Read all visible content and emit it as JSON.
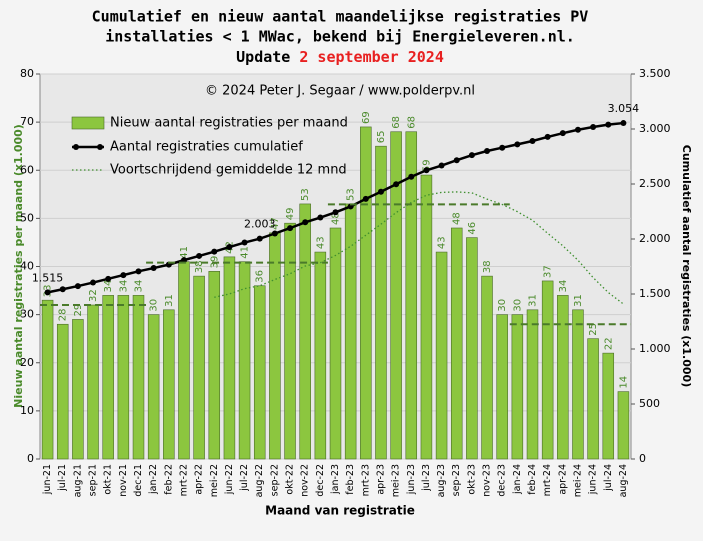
{
  "chart_data": {
    "type": "bar_line",
    "title_lines": [
      "Cumulatief  en nieuw  aantal maandelijkse  registraties  PV",
      "installaties  < 1 MWac, bekend bij Energieleveren.nl."
    ],
    "update_prefix": "Update",
    "update_date": "2 september 2024",
    "annotation": "© 2024  Peter J. Segaar / www.polderpv.nl",
    "x_label": "Maand van registratie",
    "y_label": "Nieuw aantal registraties per maand (x1.000)",
    "y2_label": "Cumulatief aantal registraties (x1.000)",
    "categories": [
      "jun-21",
      "jul-21",
      "aug-21",
      "sep-21",
      "okt-21",
      "nov-21",
      "dec-21",
      "jan-22",
      "feb-22",
      "mrt-22",
      "apr-22",
      "mei-22",
      "jun-22",
      "jul-22",
      "aug-22",
      "sep-22",
      "okt-22",
      "nov-22",
      "dec-22",
      "jan-23",
      "feb-23",
      "mrt-23",
      "apr-23",
      "mei-23",
      "jun-23",
      "jul-23",
      "aug-23",
      "sep-23",
      "okt-23",
      "nov-23",
      "dec-23",
      "jan-24",
      "feb-24",
      "mrt-24",
      "apr-24",
      "mei-24",
      "jun-24",
      "jul-24",
      "aug-24"
    ],
    "series": [
      {
        "name": "Nieuw aantal registraties per maand",
        "type": "bar",
        "color": "#8cc63f",
        "values": [
          33,
          28,
          29,
          32,
          34,
          34,
          34,
          30,
          31,
          41,
          38,
          39,
          42,
          41,
          36,
          47,
          49,
          53,
          43,
          48,
          53,
          69,
          65,
          68,
          68,
          59,
          43,
          48,
          46,
          38,
          30,
          30,
          31,
          37,
          34,
          31,
          25,
          22,
          14
        ]
      },
      {
        "name": "Aantal registraties cumulatief",
        "type": "line",
        "axis": "y2",
        "color": "#000000",
        "marker": true,
        "values": [
          1515,
          1543,
          1572,
          1604,
          1638,
          1672,
          1706,
          1736,
          1767,
          1808,
          1846,
          1885,
          1927,
          1968,
          2003,
          2050,
          2099,
          2152,
          2195,
          2243,
          2296,
          2365,
          2430,
          2498,
          2566,
          2625,
          2668,
          2716,
          2762,
          2800,
          2830,
          2860,
          2891,
          2928,
          2962,
          2993,
          3018,
          3040,
          3054
        ],
        "value_labels": [
          "1.515",
          null,
          null,
          null,
          null,
          null,
          null,
          null,
          null,
          null,
          null,
          null,
          null,
          null,
          "2.003",
          null,
          null,
          null,
          null,
          null,
          null,
          null,
          null,
          null,
          null,
          null,
          null,
          null,
          null,
          null,
          null,
          null,
          null,
          null,
          null,
          null,
          null,
          null,
          "3.054"
        ]
      },
      {
        "name": "Voortschrijdend gemiddelde 12 mnd",
        "type": "line",
        "style": "dotted",
        "color": "#3f8f2f",
        "values": [
          null,
          null,
          null,
          null,
          null,
          null,
          null,
          null,
          null,
          null,
          null,
          33.6,
          34.3,
          35.4,
          36.0,
          37.3,
          38.5,
          40.1,
          40.8,
          42.3,
          44.2,
          46.5,
          48.8,
          51.2,
          53.3,
          54.8,
          55.4,
          55.5,
          55.3,
          54.0,
          52.9,
          51.4,
          49.6,
          46.9,
          44.3,
          41.3,
          37.7,
          34.6,
          32.2
        ]
      }
    ],
    "year_averages": [
      {
        "from": "jun-21",
        "to": "dec-21",
        "value": 32.0
      },
      {
        "from": "jan-22",
        "to": "dec-22",
        "value": 40.8
      },
      {
        "from": "jan-23",
        "to": "dec-23",
        "value": 52.9
      },
      {
        "from": "jan-24",
        "to": "aug-24",
        "value": 28.0
      }
    ],
    "year_average_color": "#4a7a2a",
    "ylim": [
      0,
      80
    ],
    "yticks": [
      0,
      10,
      20,
      30,
      40,
      50,
      60,
      70,
      80
    ],
    "y2lim": [
      0,
      3500
    ],
    "y2ticks": [
      0,
      500,
      {
        "value": 1000,
        "label": "1.000"
      },
      {
        "value": 1500,
        "label": "1.500"
      },
      {
        "value": 2000,
        "label": "2.000"
      },
      {
        "value": 2500,
        "label": "2.500"
      },
      {
        "value": 3000,
        "label": "3.000"
      },
      {
        "value": 3500,
        "label": "3.500"
      }
    ],
    "grid": true
  }
}
